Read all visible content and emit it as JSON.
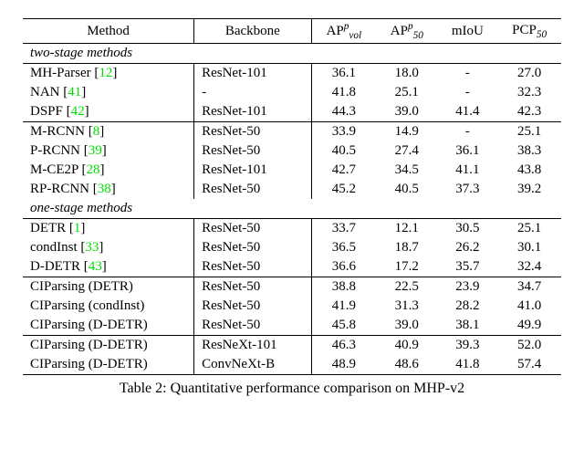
{
  "caption": "Table 2: Quantitative performance comparison on MHP-v2",
  "columns": {
    "method": "Method",
    "backbone": "Backbone",
    "ap_vol_html": "AP<span class=\"sup\">p</span><span class=\"sub\">vol</span>",
    "ap_50_html": "AP<span class=\"sup\">p</span><span class=\"sub\">50</span>",
    "miou": "mIoU",
    "pcp_html": "PCP<span class=\"sub\">50</span>"
  },
  "sections": [
    {
      "title": "two-stage methods",
      "groups": [
        [
          {
            "method_html": "MH-Parser [<span class=\"cite\">12</span>]",
            "backbone": "ResNet-101",
            "apvol": "36.1",
            "ap50": "18.0",
            "miou": "-",
            "pcp": "27.0"
          },
          {
            "method_html": "NAN [<span class=\"cite\">41</span>]",
            "backbone": "-",
            "apvol": "41.8",
            "ap50": "25.1",
            "miou": "-",
            "pcp": "32.3"
          },
          {
            "method_html": "DSPF [<span class=\"cite\">42</span>]",
            "backbone": "ResNet-101",
            "apvol": "44.3",
            "ap50": "39.0",
            "miou": "41.4",
            "pcp": "42.3"
          }
        ],
        [
          {
            "method_html": "M-RCNN [<span class=\"cite\">8</span>]",
            "backbone": "ResNet-50",
            "apvol": "33.9",
            "ap50": "14.9",
            "miou": "-",
            "pcp": "25.1"
          },
          {
            "method_html": "P-RCNN [<span class=\"cite\">39</span>]",
            "backbone": "ResNet-50",
            "apvol": "40.5",
            "ap50": "27.4",
            "miou": "36.1",
            "pcp": "38.3"
          },
          {
            "method_html": "M-CE2P [<span class=\"cite\">28</span>]",
            "backbone": "ResNet-101",
            "apvol": "42.7",
            "ap50": "34.5",
            "miou": "41.1",
            "pcp": "43.8"
          },
          {
            "method_html": "RP-RCNN [<span class=\"cite\">38</span>]",
            "backbone": "ResNet-50",
            "apvol": "45.2",
            "ap50": "40.5",
            "miou": "37.3",
            "pcp": "39.2"
          }
        ]
      ]
    },
    {
      "title": "one-stage methods",
      "groups": [
        [
          {
            "method_html": "DETR [<span class=\"cite\">1</span>]",
            "backbone": "ResNet-50",
            "apvol": "33.7",
            "ap50": "12.1",
            "miou": "30.5",
            "pcp": "25.1"
          },
          {
            "method_html": "condInst [<span class=\"cite\">33</span>]",
            "backbone": "ResNet-50",
            "apvol": "36.5",
            "ap50": "18.7",
            "miou": "26.2",
            "pcp": "30.1"
          },
          {
            "method_html": "D-DETR [<span class=\"cite\">43</span>]",
            "backbone": "ResNet-50",
            "apvol": "36.6",
            "ap50": "17.2",
            "miou": "35.7",
            "pcp": "32.4"
          }
        ],
        [
          {
            "method_html": "CIParsing (DETR)",
            "backbone": "ResNet-50",
            "apvol": "38.8",
            "ap50": "22.5",
            "miou": "23.9",
            "pcp": "34.7"
          },
          {
            "method_html": "CIParsing (condInst)",
            "backbone": "ResNet-50",
            "apvol": "41.9",
            "ap50": "31.3",
            "miou": "28.2",
            "pcp": "41.0"
          },
          {
            "method_html": "CIParsing (D-DETR)",
            "backbone": "ResNet-50",
            "apvol": "45.8",
            "ap50": "39.0",
            "miou": "38.1",
            "pcp": "49.9"
          }
        ],
        [
          {
            "method_html": "CIParsing (D-DETR)",
            "backbone": "ResNeXt-101",
            "apvol": "46.3",
            "ap50": "40.9",
            "miou": "39.3",
            "pcp": "52.0"
          },
          {
            "method_html": "CIParsing (D-DETR)",
            "backbone": "ConvNeXt-B",
            "apvol": "48.9",
            "ap50": "48.6",
            "miou": "41.8",
            "pcp": "57.4"
          }
        ]
      ]
    }
  ]
}
